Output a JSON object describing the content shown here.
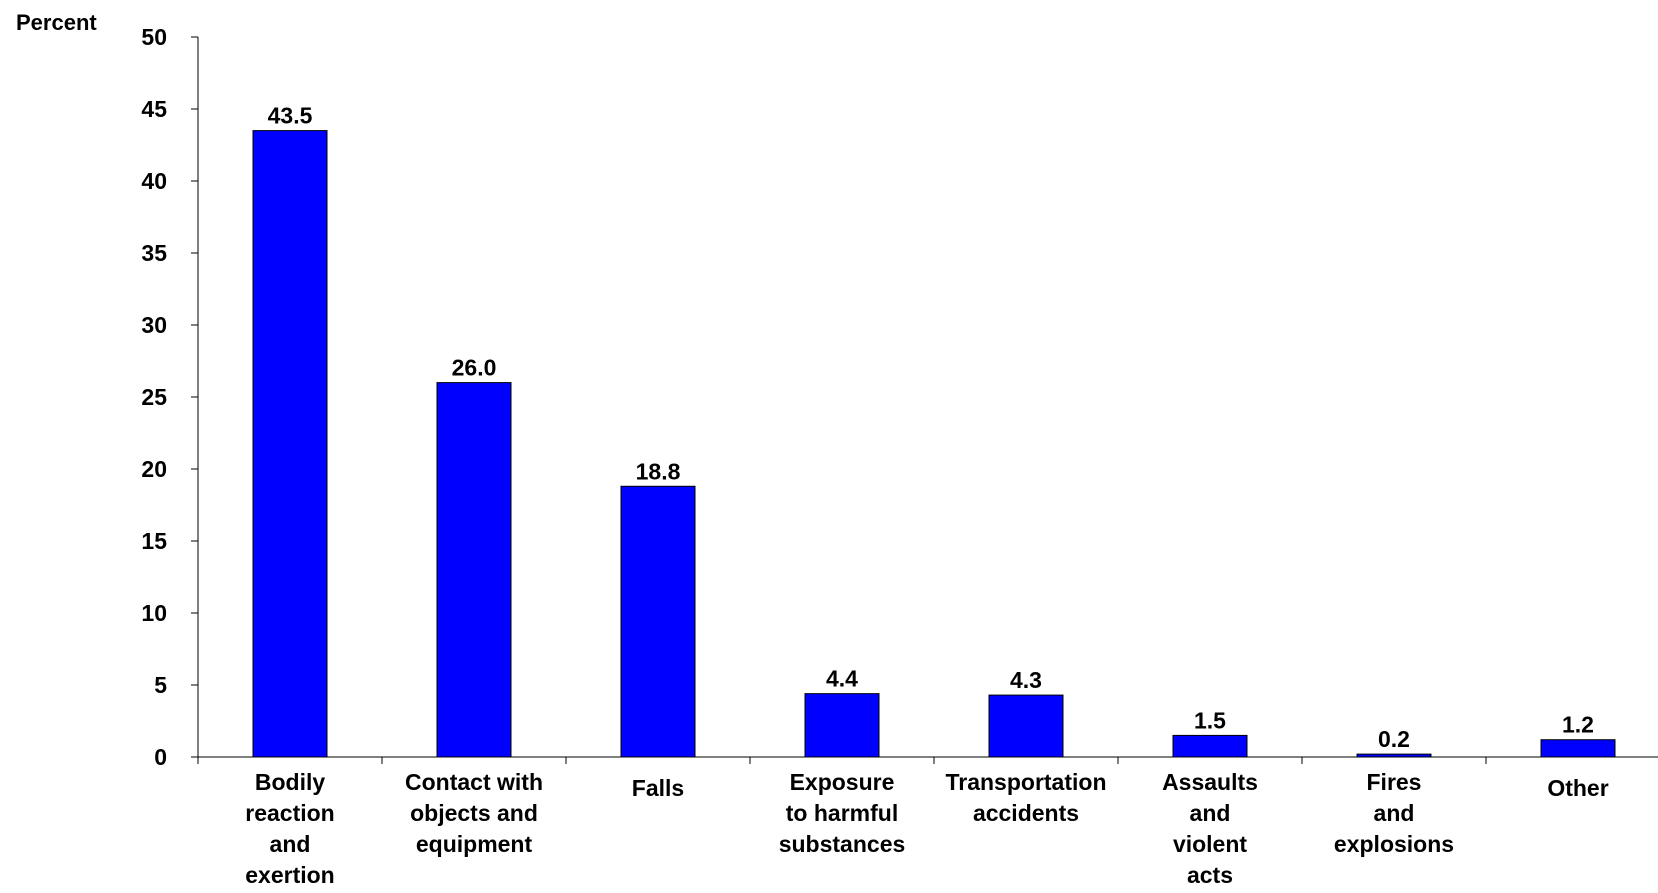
{
  "chart_data": {
    "type": "bar",
    "ylabel": "Percent",
    "xlabel": "",
    "title": "",
    "ylim": [
      0,
      50
    ],
    "yticks": [
      0,
      5,
      10,
      15,
      20,
      25,
      30,
      35,
      40,
      45,
      50
    ],
    "grid": false,
    "legend": "none",
    "categories": [
      [
        "Bodily",
        "reaction",
        "and",
        "exertion"
      ],
      [
        "Contact with",
        "objects and",
        "equipment"
      ],
      [
        "Falls"
      ],
      [
        "Exposure",
        "to harmful",
        "substances"
      ],
      [
        "Transportation",
        "accidents"
      ],
      [
        "Assaults",
        "and",
        "violent",
        "acts"
      ],
      [
        "Fires",
        "and",
        "explosions"
      ],
      [
        "Other"
      ]
    ],
    "values": [
      43.5,
      26.0,
      18.8,
      4.4,
      4.3,
      1.5,
      0.2,
      1.2
    ],
    "value_labels": [
      "43.5",
      "26.0",
      "18.8",
      "4.4",
      "4.3",
      "1.5",
      "0.2",
      "1.2"
    ],
    "bar_color": "#0000FF",
    "bar_edge_color": "#000000"
  }
}
